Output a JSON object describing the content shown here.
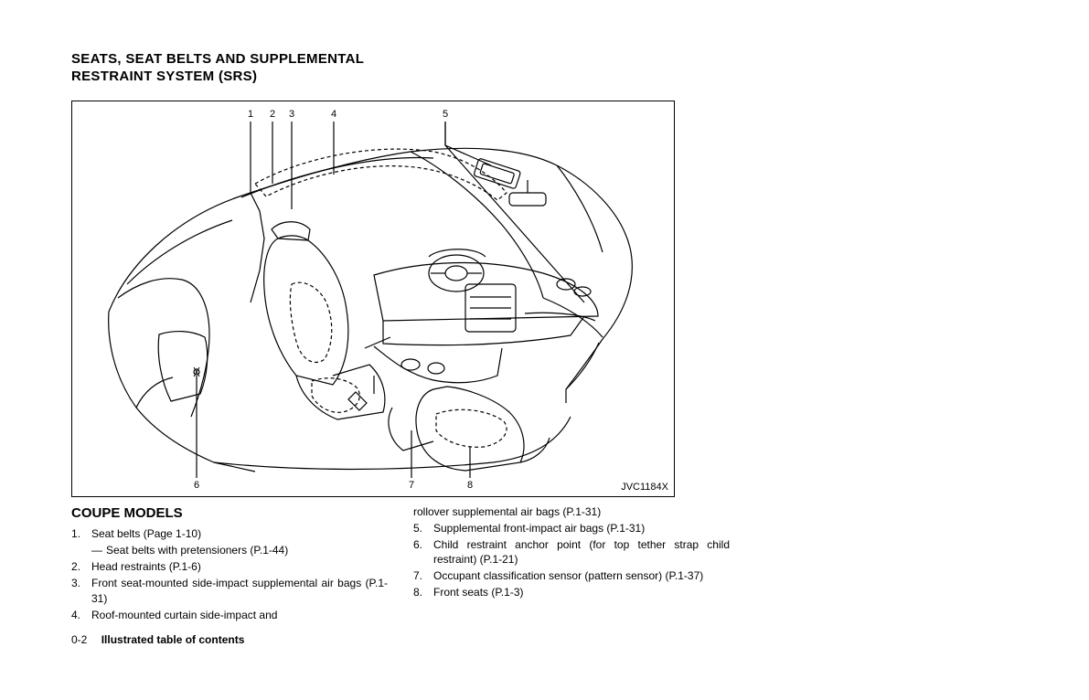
{
  "section_title_line1": "SEATS, SEAT BELTS AND SUPPLEMENTAL",
  "section_title_line2": "RESTRAINT SYSTEM (SRS)",
  "image_code": "JVC1184X",
  "subtitle": "COUPE MODELS",
  "callouts": {
    "c1": "1",
    "c2": "2",
    "c3": "3",
    "c4": "4",
    "c5": "5",
    "c6": "6",
    "c7": "7",
    "c8": "8"
  },
  "left_items": [
    {
      "n": "1.",
      "t": "Seat belts (Page 1-10)",
      "sub": "Seat belts with pretensioners (P.1-44)"
    },
    {
      "n": "2.",
      "t": "Head restraints (P.1-6)"
    },
    {
      "n": "3.",
      "t": "Front seat-mounted side-impact supplemental air bags (P.1-31)"
    },
    {
      "n": "4.",
      "t": "Roof-mounted curtain side-impact and"
    }
  ],
  "right_continuation": "rollover supplemental air bags (P.1-31)",
  "right_items": [
    {
      "n": "5.",
      "t": "Supplemental front-impact air bags (P.1-31)"
    },
    {
      "n": "6.",
      "t": "Child restraint anchor point (for top tether strap child restraint) (P.1-21)"
    },
    {
      "n": "7.",
      "t": "Occupant classification sensor (pattern sensor) (P.1-37)"
    },
    {
      "n": "8.",
      "t": "Front seats (P.1-3)"
    }
  ],
  "footer_page": "0-2",
  "footer_text": "Illustrated table of contents",
  "diagram": {
    "stroke": "#000000",
    "stroke_width": 1.2,
    "dash": "4,3"
  }
}
